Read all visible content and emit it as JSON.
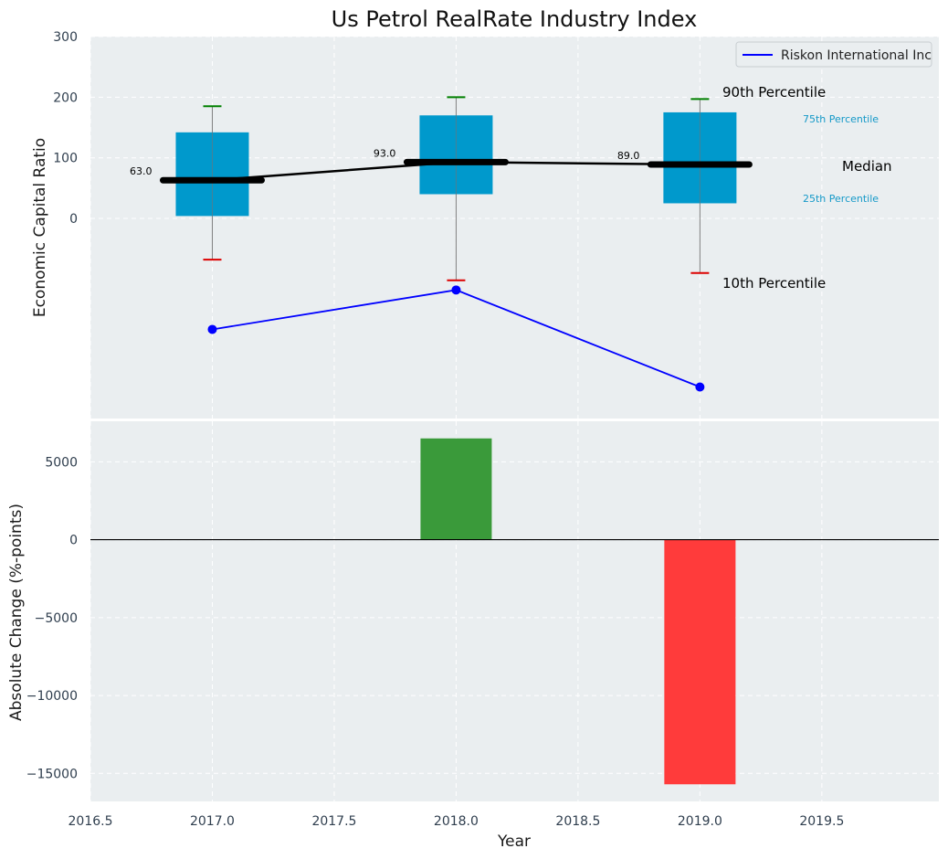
{
  "chart_data": [
    {
      "type": "box",
      "title": "Us Petrol RealRate Industry Index",
      "ylabel": "Economic Capital Ratio",
      "xlim": [
        2016.5,
        2019.98
      ],
      "ylim": [
        -330,
        300
      ],
      "yticks": [
        0,
        100,
        200,
        300
      ],
      "boxes": [
        {
          "x": 2017.0,
          "p10": -68,
          "p25": 4,
          "median": 63.0,
          "p75": 142,
          "p90": 185
        },
        {
          "x": 2018.0,
          "p10": -102,
          "p25": 40,
          "median": 93.0,
          "p75": 170,
          "p90": 200
        },
        {
          "x": 2019.0,
          "p10": -90,
          "p25": 25,
          "median": 89.0,
          "p75": 175,
          "p90": 197
        }
      ],
      "median_labels": [
        "63.0",
        "93.0",
        "89.0"
      ],
      "company_series": {
        "name": "Riskon International Inc",
        "x": [
          2017.0,
          2018.0,
          2019.0
        ],
        "values": [
          -183,
          -118,
          -278
        ]
      },
      "annotations": {
        "p90": "90th Percentile",
        "p75": "75th Percentile",
        "median": "Median",
        "p25": "25th Percentile",
        "p10": "10th Percentile"
      },
      "legend": {
        "label": "Riskon International Inc",
        "position": "top-right"
      }
    },
    {
      "type": "bar",
      "ylabel": "Absolute Change (%-points)",
      "xlabel": "Year",
      "xlim": [
        2016.5,
        2019.98
      ],
      "ylim": [
        -16800,
        7600
      ],
      "yticks": [
        5000,
        0,
        -5000,
        -10000,
        -15000
      ],
      "ytick_labels": [
        "5000",
        "0",
        "−5000",
        "−10000",
        "−15000"
      ],
      "xticks": [
        2016.5,
        2017.0,
        2017.5,
        2018.0,
        2018.5,
        2019.0,
        2019.5
      ],
      "xtick_labels": [
        "2016.5",
        "2017.0",
        "2017.5",
        "2018.0",
        "2018.5",
        "2019.0",
        "2019.5"
      ],
      "x": [
        2018.0,
        2019.0
      ],
      "values": [
        6500,
        -15700
      ],
      "colors": [
        "#3a9a3a",
        "#ff3b3b"
      ]
    }
  ],
  "colors": {
    "plot_bg": "#eaeef0",
    "box_fill": "#0099cc",
    "median_line": "#000000",
    "company_line": "#0000ff",
    "whisker_top": "#008000",
    "whisker_bottom": "#dd0000",
    "whisker_line": "#808080",
    "p75_text": "#1599c8"
  }
}
